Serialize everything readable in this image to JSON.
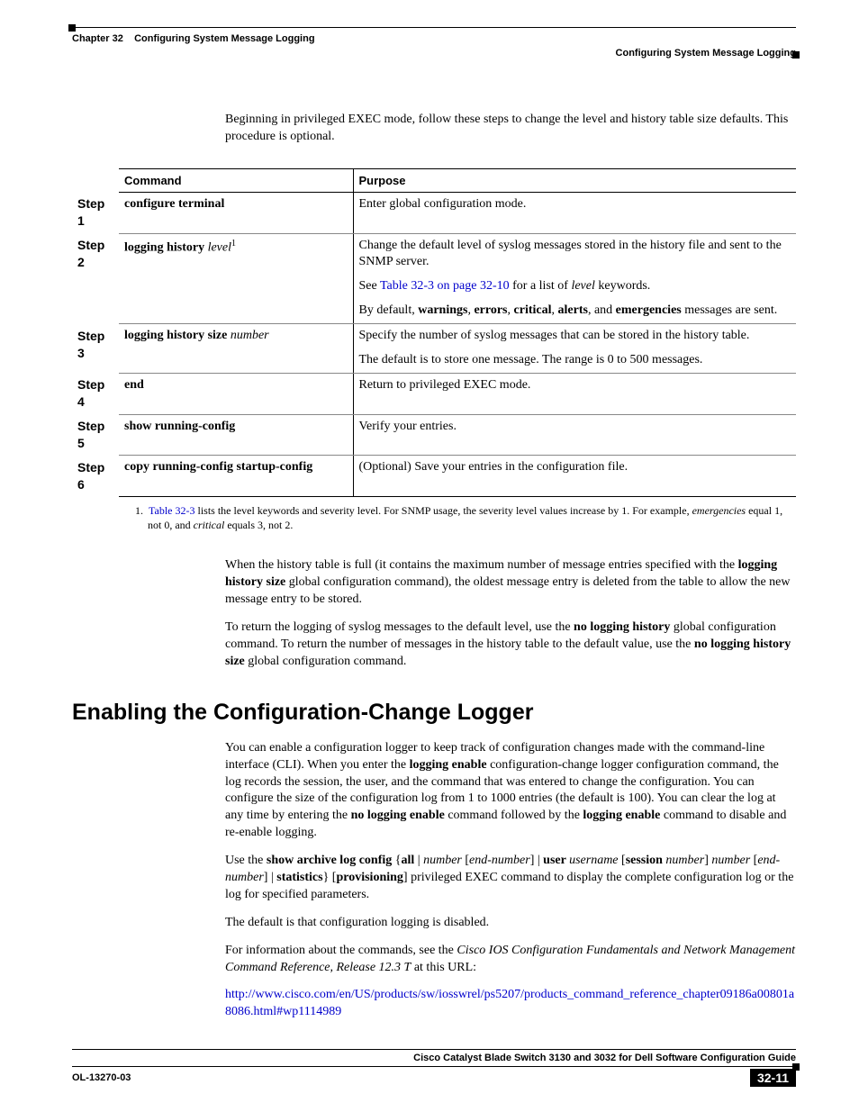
{
  "header": {
    "chapter_label": "Chapter 32",
    "chapter_title": "Configuring System Message Logging",
    "section_title": "Configuring System Message Logging"
  },
  "intro": "Beginning in privileged EXEC mode, follow these steps to change the level and history table size defaults. This procedure is optional.",
  "table": {
    "head_command": "Command",
    "head_purpose": "Purpose",
    "rows": [
      {
        "step": "Step 1",
        "cmd_bold": "configure terminal",
        "cmd_ital": "",
        "cmd_sup": "",
        "purpose_lines": [
          {
            "parts": [
              {
                "t": "Enter global configuration mode."
              }
            ]
          }
        ]
      },
      {
        "step": "Step 2",
        "cmd_bold": "logging history ",
        "cmd_ital": "level",
        "cmd_sup": "1",
        "purpose_lines": [
          {
            "parts": [
              {
                "t": "Change the default level of syslog messages stored in the history file and sent to the SNMP server."
              }
            ]
          },
          {
            "parts": [
              {
                "t": "See "
              },
              {
                "t": "Table 32-3 on page 32-10",
                "link": true
              },
              {
                "t": " for a list of "
              },
              {
                "t": "level",
                "ital": true
              },
              {
                "t": " keywords."
              }
            ]
          },
          {
            "parts": [
              {
                "t": "By default, "
              },
              {
                "t": "warnings",
                "bold": true
              },
              {
                "t": ", "
              },
              {
                "t": "errors",
                "bold": true
              },
              {
                "t": ", "
              },
              {
                "t": "critical",
                "bold": true
              },
              {
                "t": ", "
              },
              {
                "t": "alerts",
                "bold": true
              },
              {
                "t": ", and "
              },
              {
                "t": "emergencies",
                "bold": true
              },
              {
                "t": " messages are sent."
              }
            ]
          }
        ]
      },
      {
        "step": "Step 3",
        "cmd_bold": "logging history size ",
        "cmd_ital": "number",
        "cmd_sup": "",
        "purpose_lines": [
          {
            "parts": [
              {
                "t": "Specify the number of syslog messages that can be stored in the history table."
              }
            ]
          },
          {
            "parts": [
              {
                "t": "The default is to store one message. The range is 0 to 500 messages."
              }
            ]
          }
        ]
      },
      {
        "step": "Step 4",
        "cmd_bold": "end",
        "cmd_ital": "",
        "cmd_sup": "",
        "purpose_lines": [
          {
            "parts": [
              {
                "t": "Return to privileged EXEC mode."
              }
            ]
          }
        ]
      },
      {
        "step": "Step 5",
        "cmd_bold": "show running-config",
        "cmd_ital": "",
        "cmd_sup": "",
        "purpose_lines": [
          {
            "parts": [
              {
                "t": "Verify your entries."
              }
            ]
          }
        ]
      },
      {
        "step": "Step 6",
        "cmd_bold": "copy running-config startup-config",
        "cmd_ital": "",
        "cmd_sup": "",
        "purpose_lines": [
          {
            "parts": [
              {
                "t": "(Optional) Save your entries in the configuration file."
              }
            ]
          }
        ]
      }
    ]
  },
  "footnote": {
    "num": "1.",
    "link": "Table 32-3",
    "rest": " lists the level keywords and severity level. For SNMP usage, the severity level values increase by 1. For example, ",
    "ital1": "emergencies",
    "mid": " equal 1, not 0, and ",
    "ital2": "critical",
    "tail": " equals 3, not 2."
  },
  "after_para1_parts": [
    {
      "t": "When the history table is full (it contains the maximum number of message entries specified with the "
    },
    {
      "t": "logging history size",
      "bold": true
    },
    {
      "t": " global configuration command), the oldest message entry is deleted from the table to allow the new message entry to be stored."
    }
  ],
  "after_para2_parts": [
    {
      "t": "To return the logging of syslog messages to the default level, use the "
    },
    {
      "t": "no logging history",
      "bold": true
    },
    {
      "t": " global configuration command. To return the number of messages in the history table to the default value, use the "
    },
    {
      "t": "no logging history size",
      "bold": true
    },
    {
      "t": " global configuration command."
    }
  ],
  "section2": {
    "heading": "Enabling the Configuration-Change Logger",
    "p1_parts": [
      {
        "t": "You can enable a configuration logger to keep track of configuration changes made with the command-line interface (CLI). When you enter the "
      },
      {
        "t": "logging enable",
        "bold": true
      },
      {
        "t": " configuration-change logger configuration command, the log records the session, the user, and the command that was entered to change the configuration. You can configure the size of the configuration log from 1 to 1000 entries (the default is 100). You can clear the log at any time by entering the "
      },
      {
        "t": "no logging enable",
        "bold": true
      },
      {
        "t": " command followed by the "
      },
      {
        "t": "logging enable",
        "bold": true
      },
      {
        "t": " command to disable and re-enable logging."
      }
    ],
    "p2_parts": [
      {
        "t": "Use the "
      },
      {
        "t": "show archive log config",
        "bold": true
      },
      {
        "t": " {"
      },
      {
        "t": "all",
        "bold": true
      },
      {
        "t": " | "
      },
      {
        "t": "number",
        "ital": true
      },
      {
        "t": " ["
      },
      {
        "t": "end-number",
        "ital": true
      },
      {
        "t": "] | "
      },
      {
        "t": "user ",
        "bold": true
      },
      {
        "t": "username",
        "ital": true
      },
      {
        "t": " ["
      },
      {
        "t": "session ",
        "bold": true
      },
      {
        "t": "number",
        "ital": true
      },
      {
        "t": "] "
      },
      {
        "t": "number",
        "ital": true
      },
      {
        "t": " ["
      },
      {
        "t": "end-number",
        "ital": true
      },
      {
        "t": "] | "
      },
      {
        "t": "statistics",
        "bold": true
      },
      {
        "t": "} ["
      },
      {
        "t": "provisioning",
        "bold": true
      },
      {
        "t": "] privileged EXEC command to display the complete configuration log or the log for specified parameters."
      }
    ],
    "p3": "The default is that configuration logging is disabled.",
    "p4_parts": [
      {
        "t": "For information about the commands, see the "
      },
      {
        "t": "Cisco IOS Configuration Fundamentals and Network Management Command Reference, Release 12.3 T",
        "ital": true
      },
      {
        "t": " at this URL:"
      }
    ],
    "url": "http://www.cisco.com/en/US/products/sw/iosswrel/ps5207/products_command_reference_chapter09186a00801a8086.html#wp1114989"
  },
  "footer": {
    "guide": "Cisco Catalyst Blade Switch 3130 and 3032 for Dell Software Configuration Guide",
    "doc_id": "OL-13270-03",
    "page": "32-11"
  }
}
